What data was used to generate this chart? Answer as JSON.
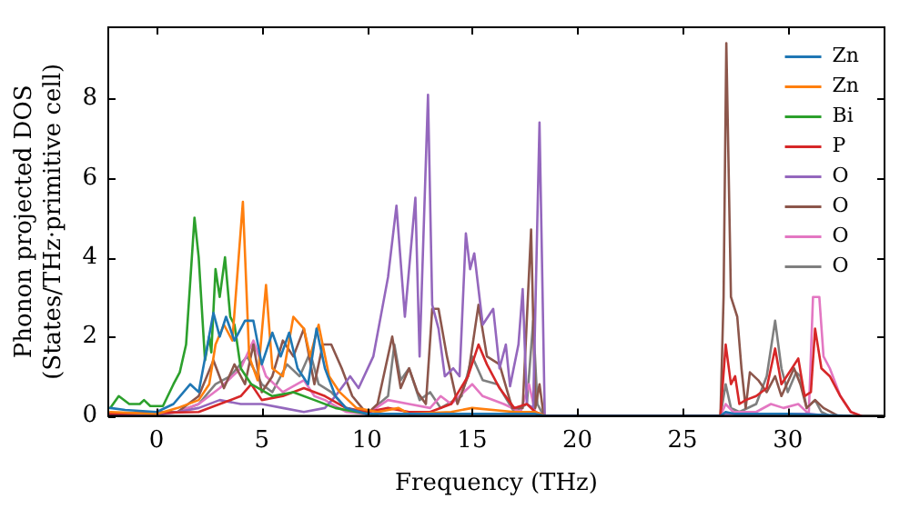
{
  "chart_data": {
    "type": "line",
    "xlabel": "Frequency (THz)",
    "ylabel": "Phonon projected DOS\n(States/THz·primitive cell)",
    "xlim": [
      -2.3,
      34.6
    ],
    "ylim": [
      0,
      9.8
    ],
    "xticks": [
      0,
      5,
      10,
      15,
      20,
      25,
      30
    ],
    "yticks": [
      0,
      2,
      4,
      6,
      8
    ],
    "legend": "top right",
    "marker": "none",
    "line_style": "solid",
    "series": [
      {
        "name": "Zn",
        "color": "#1f77b4",
        "x": [
          -2.2,
          -1.5,
          0,
          0.8,
          1.6,
          2.0,
          2.7,
          3.0,
          3.3,
          3.7,
          4.2,
          4.6,
          5.0,
          5.5,
          5.9,
          6.3,
          6.7,
          7.2,
          7.6,
          8.0,
          8.5,
          9,
          10,
          15,
          18,
          18.5,
          26.8,
          27.05,
          27.5,
          30,
          33
        ],
        "values": [
          0.2,
          0.15,
          0.1,
          0.3,
          0.8,
          0.6,
          2.6,
          2.0,
          2.5,
          1.9,
          2.4,
          2.4,
          1.3,
          2.1,
          1.5,
          2.1,
          1.2,
          0.8,
          2.2,
          1.2,
          0.5,
          0.2,
          0.05,
          0.05,
          0.05,
          0,
          0,
          0.1,
          0.05,
          0.05,
          0
        ]
      },
      {
        "name": "Zn",
        "color": "#ff7f0e",
        "x": [
          -2.2,
          0,
          1,
          2,
          2.5,
          2.8,
          3.2,
          3.6,
          4.1,
          4.4,
          4.8,
          5.2,
          5.5,
          6.0,
          6.5,
          7.0,
          7.3,
          7.7,
          8.2,
          8.7,
          9.5,
          10.5,
          11.5,
          12,
          14,
          15,
          17,
          18,
          18.5
        ],
        "values": [
          0.1,
          0.05,
          0.2,
          0.4,
          0.8,
          1.8,
          2.3,
          1.9,
          5.4,
          1.5,
          0.9,
          3.3,
          1.2,
          1.0,
          2.5,
          2.2,
          1.5,
          2.3,
          1.0,
          0.6,
          0.2,
          0.1,
          0.2,
          0.05,
          0.1,
          0.2,
          0.1,
          0.1,
          0
        ]
      },
      {
        "name": "Bi",
        "color": "#2ca02c",
        "x": [
          -2.2,
          -1.8,
          -1.3,
          -0.8,
          -0.6,
          -0.3,
          0.3,
          0.8,
          1.1,
          1.4,
          1.8,
          2.0,
          2.3,
          2.5,
          2.6,
          2.8,
          3.0,
          3.25,
          3.5,
          3.7,
          4.0,
          4.5,
          5.5,
          6.5,
          7.5,
          8.5,
          9.5,
          10.5
        ],
        "values": [
          0.2,
          0.5,
          0.3,
          0.3,
          0.4,
          0.25,
          0.25,
          0.8,
          1.1,
          1.8,
          5.0,
          4.0,
          1.4,
          2.0,
          1.6,
          3.7,
          3.0,
          4.0,
          2.5,
          2.3,
          1.2,
          0.8,
          0.5,
          0.6,
          0.4,
          0.2,
          0.1,
          0.02
        ]
      },
      {
        "name": "P",
        "color": "#d62728",
        "x": [
          -2.2,
          2,
          3,
          4,
          4.5,
          5,
          6,
          7,
          8,
          9,
          10,
          11,
          12,
          13,
          14,
          14.8,
          15.3,
          15.7,
          16.3,
          17,
          17.6,
          18,
          18.5,
          26.8,
          27.05,
          27.3,
          27.5,
          27.7,
          28,
          28.5,
          29.0,
          29.4,
          29.7,
          30.2,
          30.5,
          30.8,
          31.1,
          31.3,
          31.6,
          32,
          32.5,
          33,
          33.5
        ],
        "values": [
          0.05,
          0.1,
          0.3,
          0.5,
          0.8,
          0.4,
          0.5,
          0.7,
          0.5,
          0.2,
          0.1,
          0.2,
          0.1,
          0.1,
          0.3,
          1.0,
          1.8,
          1.3,
          0.7,
          0.2,
          0.3,
          0.1,
          0,
          0,
          1.8,
          0.8,
          1.0,
          0.3,
          0.4,
          0.5,
          0.7,
          1.7,
          0.8,
          1.2,
          1.45,
          0.5,
          0.6,
          2.2,
          1.2,
          1.0,
          0.5,
          0.1,
          0
        ]
      },
      {
        "name": "O",
        "color": "#9467bd",
        "x": [
          -2.2,
          0,
          1,
          2,
          3,
          4,
          5,
          6,
          7,
          8,
          8.5,
          9.2,
          9.6,
          10.3,
          11.0,
          11.4,
          11.8,
          12.3,
          12.5,
          12.9,
          13.1,
          13.4,
          13.7,
          14.1,
          14.4,
          14.7,
          14.9,
          15.1,
          15.5,
          16.0,
          16.3,
          16.6,
          16.8,
          17.2,
          17.4,
          17.6,
          17.9,
          18.2,
          18.45,
          26.8,
          27,
          29,
          31,
          32
        ],
        "values": [
          0.05,
          0.02,
          0.1,
          0.2,
          0.4,
          0.3,
          0.3,
          0.2,
          0.1,
          0.2,
          0.5,
          1.0,
          0.7,
          1.5,
          3.5,
          5.3,
          2.5,
          5.5,
          1.5,
          8.1,
          2.8,
          2.2,
          1.0,
          1.2,
          1.0,
          4.6,
          3.7,
          4.1,
          2.3,
          2.7,
          1.2,
          1.8,
          0.75,
          1.8,
          3.2,
          0.3,
          0.2,
          7.4,
          0,
          0,
          0.05,
          0.05,
          0.05,
          0
        ]
      },
      {
        "name": "O",
        "color": "#8c564b",
        "x": [
          -2.2,
          1,
          2,
          2.7,
          3.2,
          3.7,
          4.2,
          4.6,
          5.0,
          5.5,
          6.0,
          6.5,
          7.0,
          7.5,
          7.9,
          8.3,
          8.8,
          9.3,
          10.0,
          10.5,
          11.2,
          11.6,
          12.0,
          12.4,
          12.8,
          13.1,
          13.4,
          13.8,
          14.3,
          14.8,
          15.3,
          15.7,
          16.3,
          16.9,
          17.4,
          17.8,
          18.0,
          18.2,
          18.4,
          26.8,
          26.95,
          27.08,
          27.3,
          27.6,
          27.8,
          28.0,
          28.2,
          28.6,
          29.0,
          29.4,
          29.7,
          30.3,
          30.6,
          30.9,
          31.3,
          31.7,
          32.4
        ],
        "values": [
          0.05,
          0.1,
          0.5,
          1.4,
          0.7,
          1.3,
          0.8,
          1.8,
          0.6,
          1.0,
          1.9,
          1.5,
          2.2,
          0.8,
          1.8,
          1.8,
          1.2,
          0.5,
          0.05,
          0.3,
          2.0,
          0.7,
          1.2,
          0.6,
          0.3,
          2.7,
          2.7,
          1.5,
          0.3,
          1.0,
          2.8,
          1.5,
          1.3,
          0.2,
          0.2,
          4.7,
          0.2,
          0.8,
          0,
          0,
          3.0,
          9.4,
          3.0,
          2.5,
          1.2,
          0.2,
          1.1,
          0.9,
          0.6,
          1.0,
          0.5,
          1.2,
          0.8,
          0.2,
          0.4,
          0.2,
          0
        ]
      },
      {
        "name": "O",
        "color": "#e377c2",
        "x": [
          -2.2,
          1,
          2,
          3,
          4.0,
          4.6,
          5.2,
          6,
          7,
          7.5,
          8,
          9,
          10,
          11,
          12,
          13,
          13.5,
          14,
          15,
          15.5,
          16.5,
          17.3,
          17.7,
          18.0,
          18.4,
          26.8,
          27.05,
          27.4,
          28.5,
          29.2,
          29.8,
          30.5,
          31.0,
          31.2,
          31.5,
          31.7,
          32.0,
          32.5,
          33.0,
          33.5
        ],
        "values": [
          0.05,
          0.1,
          0.3,
          0.7,
          1.2,
          1.9,
          1.0,
          0.6,
          0.9,
          0.5,
          0.4,
          0.1,
          0.05,
          0.4,
          0.3,
          0.2,
          0.5,
          0.3,
          0.8,
          0.5,
          0.3,
          0.1,
          0.8,
          0.1,
          0,
          0,
          0.3,
          0.1,
          0.1,
          0.3,
          0.2,
          0.3,
          0.05,
          3.0,
          3.0,
          1.5,
          1.2,
          0.5,
          0.1,
          0
        ]
      },
      {
        "name": "O",
        "color": "#7f7f7f",
        "x": [
          -2.2,
          1,
          2,
          2.8,
          3.5,
          4.3,
          5,
          5.5,
          6.2,
          6.8,
          7.3,
          7.7,
          8.3,
          9,
          10,
          11,
          11.3,
          11.6,
          12.0,
          12.5,
          13.0,
          13.5,
          14.5,
          15.0,
          15.5,
          16.2,
          17,
          17.6,
          17.9,
          18.1,
          18.4,
          26.8,
          27.05,
          27.3,
          27.7,
          28.5,
          29.0,
          29.4,
          29.7,
          30,
          30.4,
          30.6,
          30.9,
          31.3,
          31.6,
          32,
          34.5
        ],
        "values": [
          0.05,
          0.1,
          0.3,
          0.8,
          1.0,
          1.5,
          0.8,
          0.6,
          1.3,
          1.0,
          1.6,
          0.8,
          0.6,
          0.2,
          0.05,
          0.5,
          1.8,
          0.9,
          1.2,
          0.4,
          0.6,
          0.2,
          0.5,
          1.5,
          0.9,
          0.8,
          0.1,
          0.3,
          2.4,
          0.3,
          0,
          0,
          0.8,
          0.2,
          0.1,
          0.3,
          1.0,
          2.4,
          1.2,
          0.6,
          1.1,
          1.0,
          0.2,
          0.4,
          0.1,
          0,
          0
        ]
      }
    ]
  }
}
